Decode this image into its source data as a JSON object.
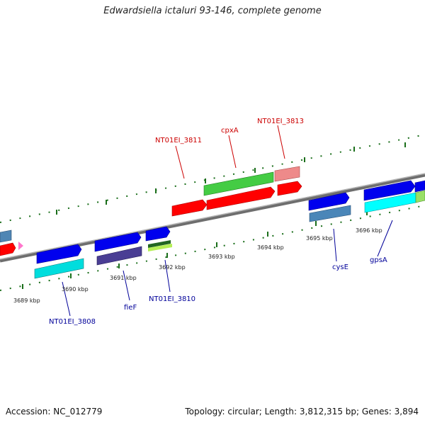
{
  "title": "Edwardsiella ictaluri 93-146, complete genome",
  "footer": {
    "accession": "Accession: NC_012779",
    "summary": "Topology: circular; Length: 3,812,315 bp; Genes: 3,894"
  },
  "colors": {
    "backbone": "#8c8c8c",
    "tick": "#1a6e1a",
    "forward_label": "#cc0000",
    "reverse_label": "#000099"
  },
  "scale_ticks": [
    "3689 kbp",
    "3690 kbp",
    "3691 kbp",
    "3692 kbp",
    "3693 kbp",
    "3694 kbp",
    "3695 kbp",
    "3696 kbp"
  ],
  "gene_labels": {
    "nt3811": "NT01EI_3811",
    "cpxA": "cpxA",
    "nt3813": "NT01EI_3813",
    "nt3808": "NT01EI_3808",
    "fieF": "fieF",
    "nt3810": "NT01EI_3810",
    "cysE": "cysE",
    "gpsA": "gpsA"
  }
}
